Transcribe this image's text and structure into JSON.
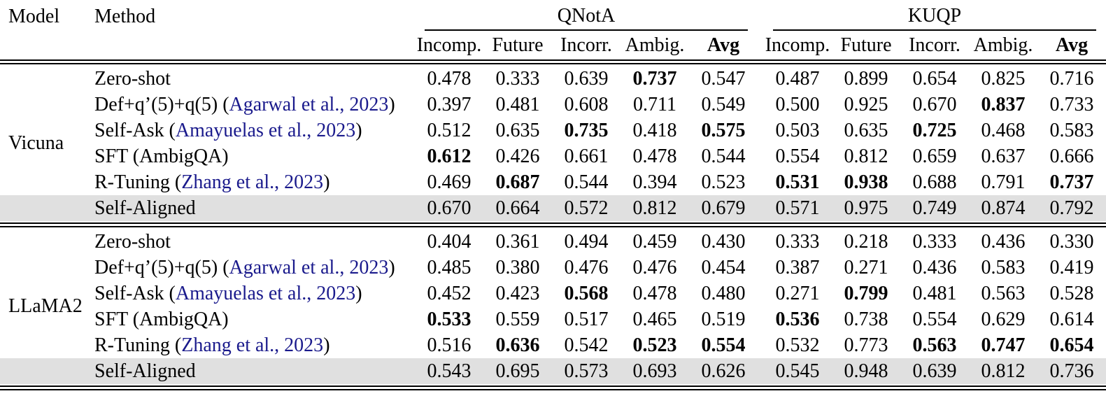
{
  "table": {
    "col_model": "Model",
    "col_method": "Method",
    "groups": [
      {
        "label": "QNotA",
        "columns": [
          "Incomp.",
          "Future",
          "Incorr.",
          "Ambig.",
          "Avg"
        ]
      },
      {
        "label": "KUQP",
        "columns": [
          "Incomp.",
          "Future",
          "Incorr.",
          "Ambig.",
          "Avg"
        ]
      }
    ],
    "blocks": [
      {
        "model": "Vicuna",
        "rows": [
          {
            "method": "Zero-shot",
            "citation": null,
            "highlight": false,
            "qnota": [
              "0.478",
              "0.333",
              "0.639",
              "0.737",
              "0.547"
            ],
            "qnota_bold": [
              0,
              0,
              0,
              1,
              0
            ],
            "kuqp": [
              "0.487",
              "0.899",
              "0.654",
              "0.825",
              "0.716"
            ],
            "kuqp_bold": [
              0,
              0,
              0,
              0,
              0
            ]
          },
          {
            "method": "Def+q’(5)+q(5) ",
            "citation": "Agarwal et al., 2023",
            "highlight": false,
            "qnota": [
              "0.397",
              "0.481",
              "0.608",
              "0.711",
              "0.549"
            ],
            "qnota_bold": [
              0,
              0,
              0,
              0,
              0
            ],
            "kuqp": [
              "0.500",
              "0.925",
              "0.670",
              "0.837",
              "0.733"
            ],
            "kuqp_bold": [
              0,
              0,
              0,
              1,
              0
            ]
          },
          {
            "method": "Self-Ask ",
            "citation": "Amayuelas et al., 2023",
            "highlight": false,
            "qnota": [
              "0.512",
              "0.635",
              "0.735",
              "0.418",
              "0.575"
            ],
            "qnota_bold": [
              0,
              0,
              1,
              0,
              1
            ],
            "kuqp": [
              "0.503",
              "0.635",
              "0.725",
              "0.468",
              "0.583"
            ],
            "kuqp_bold": [
              0,
              0,
              1,
              0,
              0
            ]
          },
          {
            "method": "SFT (AmbigQA)",
            "citation": null,
            "highlight": false,
            "qnota": [
              "0.612",
              "0.426",
              "0.661",
              "0.478",
              "0.544"
            ],
            "qnota_bold": [
              1,
              0,
              0,
              0,
              0
            ],
            "kuqp": [
              "0.554",
              "0.812",
              "0.659",
              "0.637",
              "0.666"
            ],
            "kuqp_bold": [
              0,
              0,
              0,
              0,
              0
            ]
          },
          {
            "method": "R-Tuning ",
            "citation": "Zhang et al., 2023",
            "highlight": false,
            "qnota": [
              "0.469",
              "0.687",
              "0.544",
              "0.394",
              "0.523"
            ],
            "qnota_bold": [
              0,
              1,
              0,
              0,
              0
            ],
            "kuqp": [
              "0.531",
              "0.938",
              "0.688",
              "0.791",
              "0.737"
            ],
            "kuqp_bold": [
              1,
              1,
              0,
              0,
              1
            ]
          },
          {
            "method": "Self-Aligned",
            "citation": null,
            "highlight": true,
            "qnota": [
              "0.670",
              "0.664",
              "0.572",
              "0.812",
              "0.679"
            ],
            "qnota_bold": [
              0,
              0,
              0,
              0,
              0
            ],
            "kuqp": [
              "0.571",
              "0.975",
              "0.749",
              "0.874",
              "0.792"
            ],
            "kuqp_bold": [
              0,
              0,
              0,
              0,
              0
            ]
          }
        ]
      },
      {
        "model": "LLaMA2",
        "rows": [
          {
            "method": "Zero-shot",
            "citation": null,
            "highlight": false,
            "qnota": [
              "0.404",
              "0.361",
              "0.494",
              "0.459",
              "0.430"
            ],
            "qnota_bold": [
              0,
              0,
              0,
              0,
              0
            ],
            "kuqp": [
              "0.333",
              "0.218",
              "0.333",
              "0.436",
              "0.330"
            ],
            "kuqp_bold": [
              0,
              0,
              0,
              0,
              0
            ]
          },
          {
            "method": "Def+q’(5)+q(5) ",
            "citation": "Agarwal et al., 2023",
            "highlight": false,
            "qnota": [
              "0.485",
              "0.380",
              "0.476",
              "0.476",
              "0.454"
            ],
            "qnota_bold": [
              0,
              0,
              0,
              0,
              0
            ],
            "kuqp": [
              "0.387",
              "0.271",
              "0.436",
              "0.583",
              "0.419"
            ],
            "kuqp_bold": [
              0,
              0,
              0,
              0,
              0
            ]
          },
          {
            "method": "Self-Ask ",
            "citation": "Amayuelas et al., 2023",
            "highlight": false,
            "qnota": [
              "0.452",
              "0.423",
              "0.568",
              "0.478",
              "0.480"
            ],
            "qnota_bold": [
              0,
              0,
              1,
              0,
              0
            ],
            "kuqp": [
              "0.271",
              "0.799",
              "0.481",
              "0.563",
              "0.528"
            ],
            "kuqp_bold": [
              0,
              1,
              0,
              0,
              0
            ]
          },
          {
            "method": "SFT (AmbigQA)",
            "citation": null,
            "highlight": false,
            "qnota": [
              "0.533",
              "0.559",
              "0.517",
              "0.465",
              "0.519"
            ],
            "qnota_bold": [
              1,
              0,
              0,
              0,
              0
            ],
            "kuqp": [
              "0.536",
              "0.738",
              "0.554",
              "0.629",
              "0.614"
            ],
            "kuqp_bold": [
              1,
              0,
              0,
              0,
              0
            ]
          },
          {
            "method": "R-Tuning ",
            "citation": "Zhang et al., 2023",
            "highlight": false,
            "qnota": [
              "0.516",
              "0.636",
              "0.542",
              "0.523",
              "0.554"
            ],
            "qnota_bold": [
              0,
              1,
              0,
              1,
              1
            ],
            "kuqp": [
              "0.532",
              "0.773",
              "0.563",
              "0.747",
              "0.654"
            ],
            "kuqp_bold": [
              0,
              0,
              1,
              1,
              1
            ]
          },
          {
            "method": "Self-Aligned",
            "citation": null,
            "highlight": true,
            "qnota": [
              "0.543",
              "0.695",
              "0.573",
              "0.693",
              "0.626"
            ],
            "qnota_bold": [
              0,
              0,
              0,
              0,
              0
            ],
            "kuqp": [
              "0.545",
              "0.948",
              "0.639",
              "0.812",
              "0.736"
            ],
            "kuqp_bold": [
              0,
              0,
              0,
              0,
              0
            ]
          }
        ]
      }
    ]
  },
  "colors": {
    "highlight_row": "#e0e0e0",
    "citation": "#1a1a8c",
    "rule": "#000000"
  }
}
